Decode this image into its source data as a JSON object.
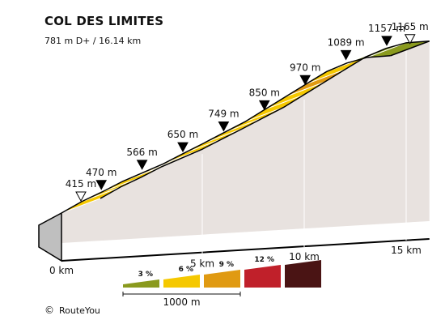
{
  "chart_data": {
    "type": "area",
    "title": "COL DES LIMITES",
    "subtitle": "781 m D+ / 16.14 km",
    "x_unit": "km",
    "y_unit": "m",
    "points": [
      {
        "km": 0,
        "m": 415,
        "label": "415 m",
        "marker": "start"
      },
      {
        "km": 1,
        "m": 470,
        "label": "470 m",
        "marker": "km"
      },
      {
        "km": 2,
        "m": 516,
        "label": "",
        "marker": ""
      },
      {
        "km": 3,
        "m": 566,
        "label": "566 m",
        "marker": "km"
      },
      {
        "km": 4,
        "m": 608,
        "label": "",
        "marker": ""
      },
      {
        "km": 5,
        "m": 650,
        "label": "650 m",
        "marker": "km"
      },
      {
        "km": 6,
        "m": 700,
        "label": "",
        "marker": ""
      },
      {
        "km": 7,
        "m": 749,
        "label": "749 m",
        "marker": "km"
      },
      {
        "km": 8,
        "m": 800,
        "label": "",
        "marker": ""
      },
      {
        "km": 9,
        "m": 850,
        "label": "850 m",
        "marker": "km"
      },
      {
        "km": 10,
        "m": 910,
        "label": "",
        "marker": ""
      },
      {
        "km": 11,
        "m": 970,
        "label": "970 m",
        "marker": "km"
      },
      {
        "km": 12,
        "m": 1030,
        "label": "",
        "marker": ""
      },
      {
        "km": 13,
        "m": 1089,
        "label": "1089 m",
        "marker": "km"
      },
      {
        "km": 14,
        "m": 1130,
        "label": "",
        "marker": ""
      },
      {
        "km": 15,
        "m": 1157,
        "label": "1157 m",
        "marker": "km"
      },
      {
        "km": 16.14,
        "m": 1165,
        "label": "1165 m",
        "marker": "end"
      }
    ],
    "segments": [
      {
        "from_km": 0,
        "to_km": 1,
        "grade_class": "6"
      },
      {
        "from_km": 1,
        "to_km": 2,
        "grade_class": "6"
      },
      {
        "from_km": 2,
        "to_km": 3,
        "grade_class": "6"
      },
      {
        "from_km": 3,
        "to_km": 4,
        "grade_class": "6"
      },
      {
        "from_km": 4,
        "to_km": 5,
        "grade_class": "6"
      },
      {
        "from_km": 5,
        "to_km": 6,
        "grade_class": "6"
      },
      {
        "from_km": 6,
        "to_km": 7,
        "grade_class": "6"
      },
      {
        "from_km": 7,
        "to_km": 8,
        "grade_class": "6"
      },
      {
        "from_km": 8,
        "to_km": 9,
        "grade_class": "6"
      },
      {
        "from_km": 9,
        "to_km": 10,
        "grade_class": "6"
      },
      {
        "from_km": 10,
        "to_km": 11,
        "grade_class": "6"
      },
      {
        "from_km": 11,
        "to_km": 12,
        "grade_class": "9"
      },
      {
        "from_km": 12,
        "to_km": 13,
        "grade_class": "6"
      },
      {
        "from_km": 13,
        "to_km": 14,
        "grade_class": "6"
      },
      {
        "from_km": 14,
        "to_km": 15,
        "grade_class": "3"
      },
      {
        "from_km": 15,
        "to_km": 16.14,
        "grade_class": "3"
      }
    ],
    "x_ticks": [
      {
        "km": 0,
        "label": "0 km"
      },
      {
        "km": 5,
        "label": "5 km"
      },
      {
        "km": 10,
        "label": "10 km"
      },
      {
        "km": 15,
        "label": "15 km"
      }
    ],
    "legend": {
      "items": [
        {
          "label": "3 %",
          "color": "#8a9a1e"
        },
        {
          "label": "6 %",
          "color": "#f5c800"
        },
        {
          "label": "9 %",
          "color": "#e09a12"
        },
        {
          "label": "12 %",
          "color": "#c0202a"
        },
        {
          "label": "",
          "color": "#4a1414"
        }
      ],
      "scale_label": "1000 m"
    },
    "colors": {
      "wall": "#e8e2df",
      "base": "#bfbfbf",
      "outline": "#000000"
    }
  },
  "credit": {
    "symbol": "©",
    "text": "RouteYou"
  }
}
